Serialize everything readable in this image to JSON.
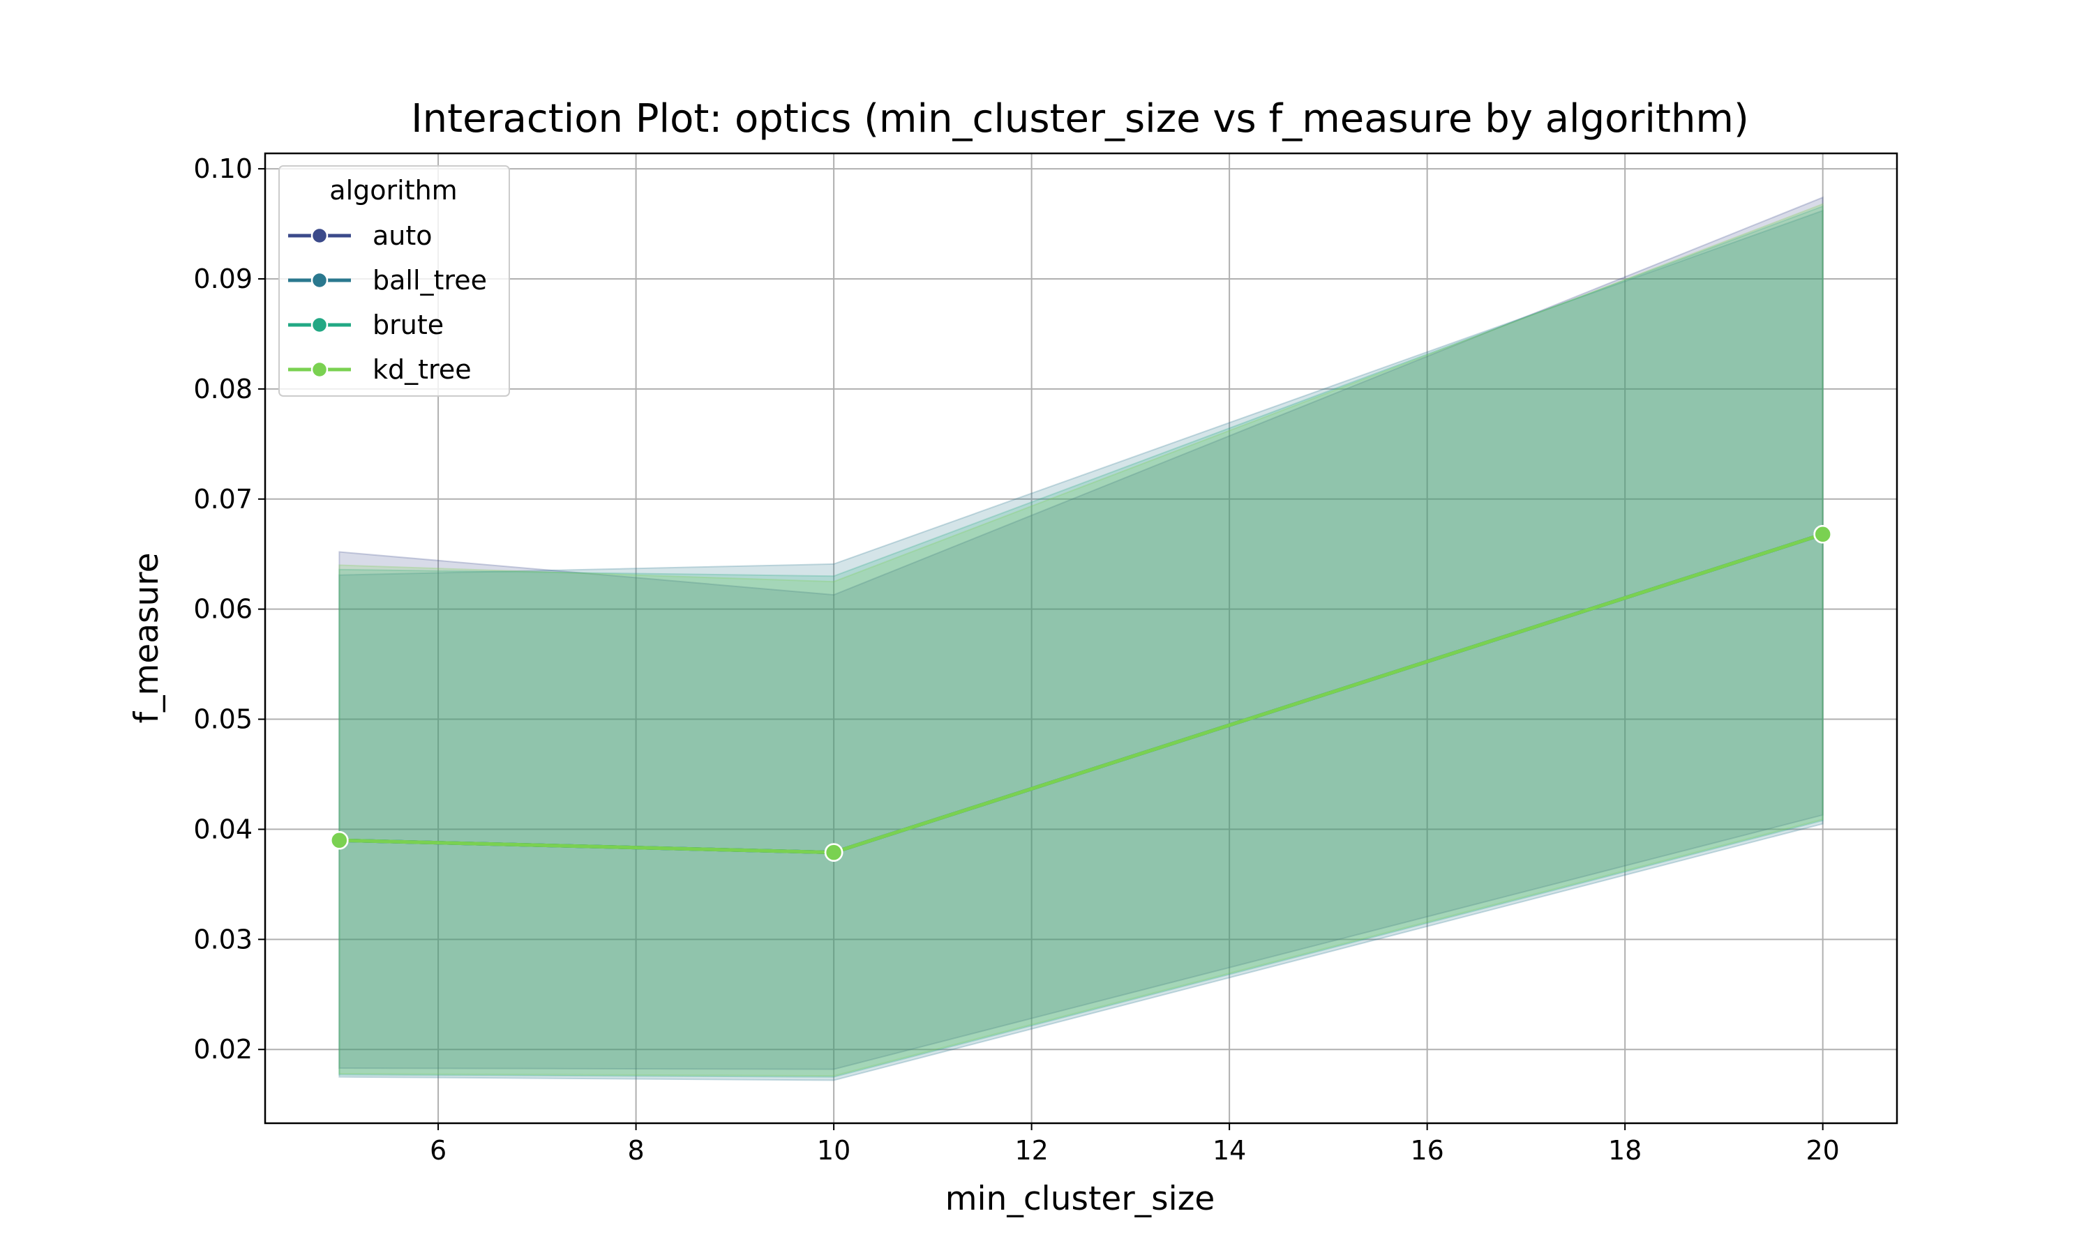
{
  "chart_data": {
    "type": "line",
    "title": "Interaction Plot: optics (min_cluster_size vs f_measure by algorithm)",
    "xlabel": "min_cluster_size",
    "ylabel": "f_measure",
    "x": [
      5,
      10,
      20
    ],
    "xlim": [
      4.25,
      20.75
    ],
    "ylim": [
      0.0133,
      0.1014
    ],
    "xticks": [
      6,
      8,
      10,
      12,
      14,
      16,
      18,
      20
    ],
    "yticks": [
      0.02,
      0.03,
      0.04,
      0.05,
      0.06,
      0.07,
      0.08,
      0.09,
      0.1
    ],
    "xtick_labels": [
      "6",
      "8",
      "10",
      "12",
      "14",
      "16",
      "18",
      "20"
    ],
    "ytick_labels": [
      "0.02",
      "0.03",
      "0.04",
      "0.05",
      "0.06",
      "0.07",
      "0.08",
      "0.09",
      "0.10"
    ],
    "grid": true,
    "legend": {
      "title": "algorithm",
      "position": "top-left"
    },
    "series": [
      {
        "name": "auto",
        "color": "#3b4a8a",
        "values": [
          0.039,
          0.0379,
          0.0668
        ],
        "ci_lower": [
          0.0183,
          0.0182,
          0.0413
        ],
        "ci_upper": [
          0.0652,
          0.0613,
          0.0974
        ]
      },
      {
        "name": "ball_tree",
        "color": "#2a788e",
        "values": [
          0.039,
          0.0379,
          0.0668
        ],
        "ci_lower": [
          0.0175,
          0.0172,
          0.0405
        ],
        "ci_upper": [
          0.0631,
          0.0641,
          0.0962
        ]
      },
      {
        "name": "brute",
        "color": "#22a884",
        "values": [
          0.039,
          0.0379,
          0.0668
        ],
        "ci_lower": [
          0.0177,
          0.0175,
          0.0408
        ],
        "ci_upper": [
          0.0636,
          0.063,
          0.0966
        ]
      },
      {
        "name": "kd_tree",
        "color": "#7ad151",
        "values": [
          0.039,
          0.0379,
          0.0668
        ],
        "ci_lower": [
          0.0178,
          0.0176,
          0.0409
        ],
        "ci_upper": [
          0.064,
          0.0625,
          0.0968
        ]
      }
    ]
  }
}
